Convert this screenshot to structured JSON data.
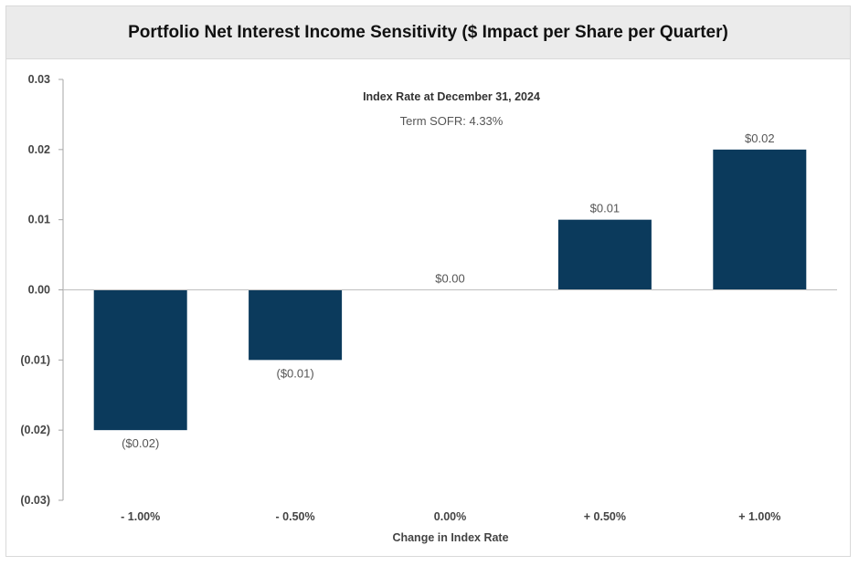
{
  "chart_data": {
    "type": "bar",
    "title": "Portfolio Net Interest Income Sensitivity ($ Impact per Share per Quarter)",
    "annotation_title": "Index Rate at December 31, 2024",
    "annotation_subtitle": "Term SOFR: 4.33%",
    "xlabel": "Change in Index Rate",
    "ylabel": "",
    "categories": [
      "- 1.00%",
      "- 0.50%",
      "0.00%",
      "+ 0.50%",
      "+ 1.00%"
    ],
    "values": [
      -0.02,
      -0.01,
      0.0,
      0.01,
      0.02
    ],
    "data_labels": [
      "($0.02)",
      "($0.01)",
      "$0.00",
      "$0.01",
      "$0.02"
    ],
    "ylim": [
      -0.03,
      0.03
    ],
    "yticks": [
      0.03,
      0.02,
      0.01,
      0.0,
      -0.01,
      -0.02,
      -0.03
    ],
    "ytick_labels": [
      "0.03",
      "0.02",
      "0.01",
      "0.00",
      "(0.01)",
      "(0.02)",
      "(0.03)"
    ],
    "grid": false,
    "legend": "none",
    "bar_color": "#0b3a5c"
  }
}
